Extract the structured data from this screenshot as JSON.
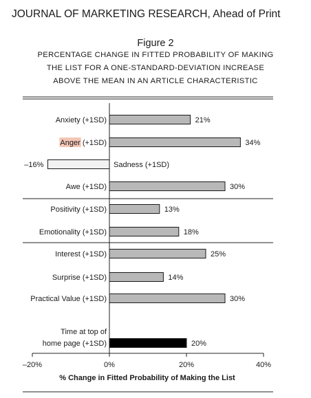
{
  "header": {
    "journal": "JOURNAL OF MARKETING RESEARCH, Ahead of Print",
    "figure_label": "Figure 2",
    "caption_lines": [
      "PERCENTAGE CHANGE IN FITTED PROBABILITY OF MAKING",
      "THE LIST FOR A ONE-STANDARD-DEVIATION INCREASE",
      "ABOVE THE MEAN IN AN ARTICLE CHARACTERISTIC"
    ]
  },
  "chart_data": {
    "type": "bar",
    "orientation": "horizontal",
    "title": "",
    "xlabel": "% Change in Fitted Probability of Making the List",
    "ylabel": "",
    "xlim": [
      -20,
      40
    ],
    "xticks": [
      -20,
      0,
      20,
      40
    ],
    "xtick_labels": [
      "–20%",
      "0%",
      "20%",
      "40%"
    ],
    "grid": false,
    "highlighted_word": "Anger",
    "categories": [
      "Anxiety (+1SD)",
      "Anger (+1SD)",
      "Sadness (+1SD)",
      "Awe (+1SD)",
      "Positivity (+1SD)",
      "Emotionality (+1SD)",
      "Interest (+1SD)",
      "Surprise (+1SD)",
      "Practical Value (+1SD)",
      "Time at top of home page (+1SD)"
    ],
    "label_lines": [
      [
        "Anxiety (+1SD)"
      ],
      [
        "Anger (+1SD)"
      ],
      [
        "Sadness (+1SD)"
      ],
      [
        "Awe (+1SD)"
      ],
      [
        "Positivity (+1SD)"
      ],
      [
        "Emotionality (+1SD)"
      ],
      [
        "Interest (+1SD)"
      ],
      [
        "Surprise (+1SD)"
      ],
      [
        "Practical Value (+1SD)"
      ],
      [
        "Time at top of",
        "home page (+1SD)"
      ]
    ],
    "values": [
      21,
      34,
      -16,
      30,
      13,
      18,
      25,
      14,
      30,
      20
    ],
    "value_labels": [
      "21%",
      "34%",
      "–16%",
      "30%",
      "13%",
      "18%",
      "25%",
      "14%",
      "30%",
      "20%"
    ],
    "colors": {
      "positive": "#b8b8b8",
      "negative": "#f2f2f2",
      "time_bar": "#000000",
      "highlight": "#f4c6b6"
    }
  }
}
